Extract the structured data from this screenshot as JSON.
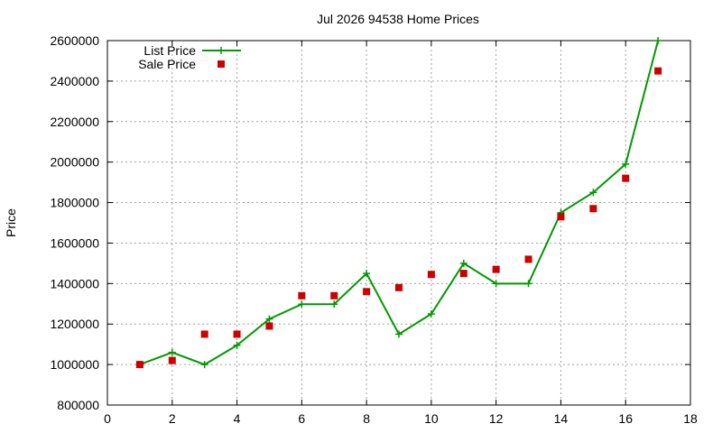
{
  "chart_data": {
    "type": "line",
    "title": "Jul 2026 94538 Home Prices",
    "xlabel": "",
    "ylabel": "Price",
    "xlim": [
      0,
      18
    ],
    "ylim": [
      800000,
      2600000
    ],
    "x_ticks": [
      0,
      2,
      4,
      6,
      8,
      10,
      12,
      14,
      16,
      18
    ],
    "y_ticks": [
      800000,
      1000000,
      1200000,
      1400000,
      1600000,
      1800000,
      2000000,
      2200000,
      2400000,
      2600000
    ],
    "grid": true,
    "legend_position": "top-left",
    "series": [
      {
        "name": "List Price",
        "style": "line-with-plus-markers",
        "color": "#009900",
        "x": [
          1,
          2,
          3,
          4,
          5,
          6,
          7,
          8,
          9,
          10,
          11,
          12,
          13,
          14,
          15,
          16,
          17
        ],
        "values": [
          1000000,
          1060000,
          1000000,
          1095000,
          1225000,
          1298000,
          1298000,
          1450000,
          1150000,
          1250000,
          1500000,
          1400000,
          1400000,
          1750000,
          1850000,
          1990000,
          2600000
        ]
      },
      {
        "name": "Sale Price",
        "style": "square-markers",
        "color": "#cc0000",
        "x": [
          1,
          2,
          3,
          4,
          5,
          6,
          7,
          8,
          9,
          10,
          11,
          12,
          13,
          14,
          15,
          16,
          17
        ],
        "values": [
          1000000,
          1020000,
          1150000,
          1150000,
          1190000,
          1340000,
          1340000,
          1360000,
          1380000,
          1445000,
          1450000,
          1470000,
          1520000,
          1730000,
          1770000,
          1920000,
          2450000
        ]
      }
    ]
  }
}
